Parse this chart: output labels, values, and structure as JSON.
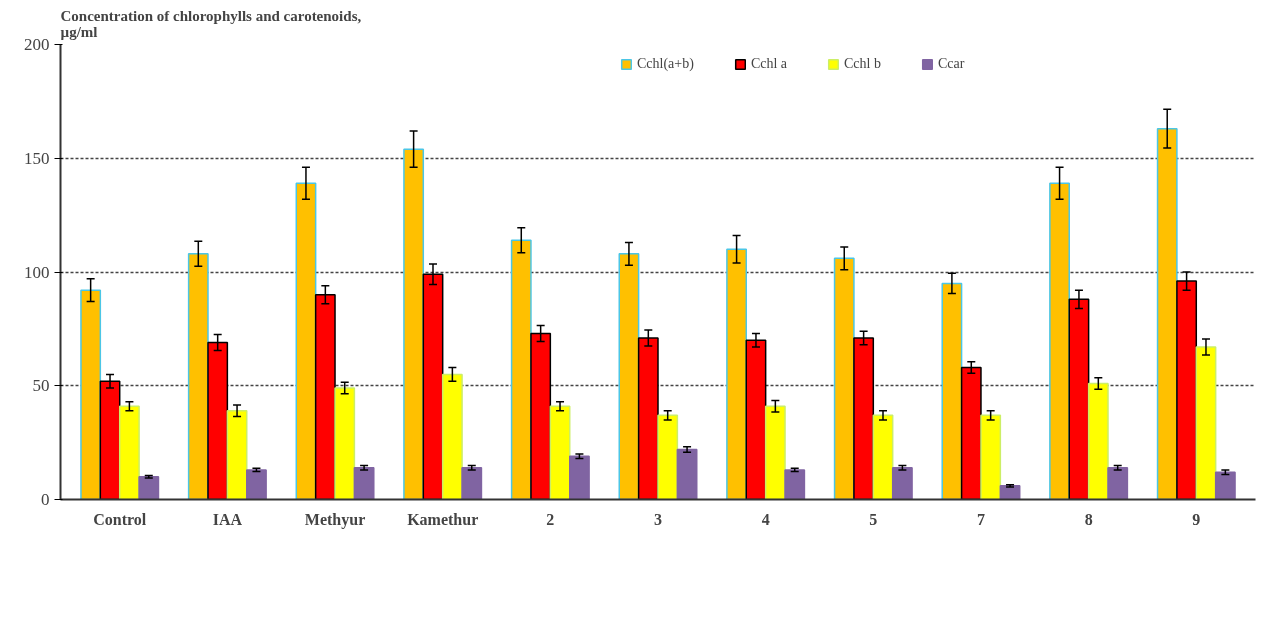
{
  "chart_data": {
    "type": "bar",
    "title": "Concentration of chlorophylls and carotenoids,\nµg/ml",
    "categories": [
      "Control",
      "IAA",
      "Methyur",
      "Kamethur",
      "2",
      "3",
      "4",
      "5",
      "7",
      "8",
      "9"
    ],
    "series": [
      {
        "name": "Cchl(a+b)",
        "color": "#ffc000",
        "values": [
          92,
          108,
          139,
          154,
          114,
          108,
          110,
          106,
          95,
          139,
          163
        ],
        "errors": [
          5,
          5.5,
          7,
          8,
          5.5,
          5,
          6,
          5,
          4.5,
          7,
          8.5
        ]
      },
      {
        "name": "Cchl a",
        "color": "#ff0000",
        "values": [
          52,
          69,
          90,
          99,
          73,
          71,
          70,
          71,
          58,
          88,
          96
        ],
        "errors": [
          3,
          3.5,
          4,
          4.5,
          3.5,
          3.5,
          3,
          3,
          2.5,
          4,
          4
        ]
      },
      {
        "name": "Cchl b",
        "color": "#ffff00",
        "values": [
          41,
          39,
          49,
          55,
          41,
          37,
          41,
          37,
          37,
          51,
          67
        ],
        "errors": [
          2,
          2.5,
          2.5,
          3,
          2,
          2,
          2.5,
          2,
          2,
          2.5,
          3.5
        ]
      },
      {
        "name": "Ccar",
        "color": "#8064a2",
        "values": [
          10,
          13,
          14,
          14,
          19,
          22,
          13,
          14,
          6,
          14,
          12
        ],
        "errors": [
          0.5,
          0.7,
          1,
          1,
          1,
          1.2,
          0.7,
          1,
          0.5,
          1,
          1
        ]
      }
    ],
    "ylim": [
      0,
      200
    ],
    "yticks": [
      0,
      50,
      100,
      150,
      200
    ],
    "grid": "y",
    "legend": "top"
  }
}
